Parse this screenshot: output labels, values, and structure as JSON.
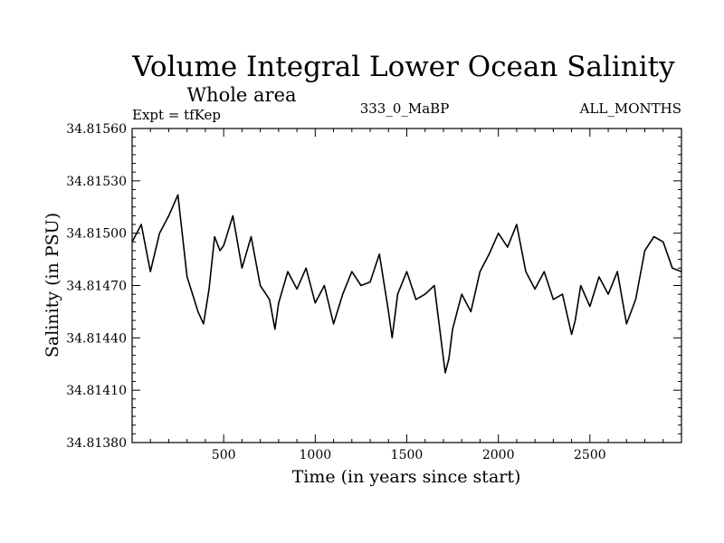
{
  "chart_data": {
    "type": "line",
    "title": "Volume Integral Lower Ocean Salinity",
    "subtitle": "Whole area",
    "annotations": {
      "expt": "Expt = tfKep",
      "center": "333_0_MaBP",
      "right": "ALL_MONTHS"
    },
    "xlabel": "Time (in years since start)",
    "ylabel": "Salinity (in PSU)",
    "xlim": [
      0,
      3000
    ],
    "ylim": [
      34.8138,
      34.8156
    ],
    "x_ticks": [
      500,
      1000,
      1500,
      2000,
      2500
    ],
    "y_ticks": [
      "34.81380",
      "34.81410",
      "34.81440",
      "34.81470",
      "34.81500",
      "34.81530",
      "34.81560"
    ],
    "grid": false,
    "legend": "none",
    "series": [
      {
        "color": "#000000",
        "x": [
          0,
          50,
          100,
          150,
          200,
          250,
          300,
          330,
          360,
          390,
          420,
          450,
          480,
          500,
          550,
          600,
          650,
          700,
          750,
          780,
          800,
          850,
          900,
          950,
          1000,
          1050,
          1100,
          1150,
          1200,
          1250,
          1300,
          1350,
          1400,
          1420,
          1450,
          1500,
          1550,
          1600,
          1650,
          1700,
          1710,
          1730,
          1750,
          1800,
          1850,
          1900,
          1950,
          2000,
          2050,
          2100,
          2150,
          2200,
          2250,
          2300,
          2350,
          2400,
          2420,
          2450,
          2500,
          2550,
          2600,
          2650,
          2700,
          2750,
          2800,
          2850,
          2900,
          2950,
          3000
        ],
        "y": [
          34.81495,
          34.81505,
          34.81478,
          34.815,
          34.8151,
          34.81522,
          34.81475,
          34.81465,
          34.81455,
          34.81448,
          34.81468,
          34.81498,
          34.8149,
          34.81493,
          34.8151,
          34.8148,
          34.81498,
          34.8147,
          34.81462,
          34.81445,
          34.8146,
          34.81478,
          34.81468,
          34.8148,
          34.8146,
          34.8147,
          34.81448,
          34.81465,
          34.81478,
          34.8147,
          34.81472,
          34.81488,
          34.81455,
          34.8144,
          34.81465,
          34.81478,
          34.81462,
          34.81465,
          34.8147,
          34.81428,
          34.8142,
          34.81428,
          34.81445,
          34.81465,
          34.81455,
          34.81478,
          34.81488,
          34.815,
          34.81492,
          34.81505,
          34.81478,
          34.81468,
          34.81478,
          34.81462,
          34.81465,
          34.81442,
          34.8145,
          34.8147,
          34.81458,
          34.81475,
          34.81465,
          34.81478,
          34.81448,
          34.81462,
          34.8149,
          34.81498,
          34.81495,
          34.8148,
          34.81478
        ]
      }
    ]
  }
}
